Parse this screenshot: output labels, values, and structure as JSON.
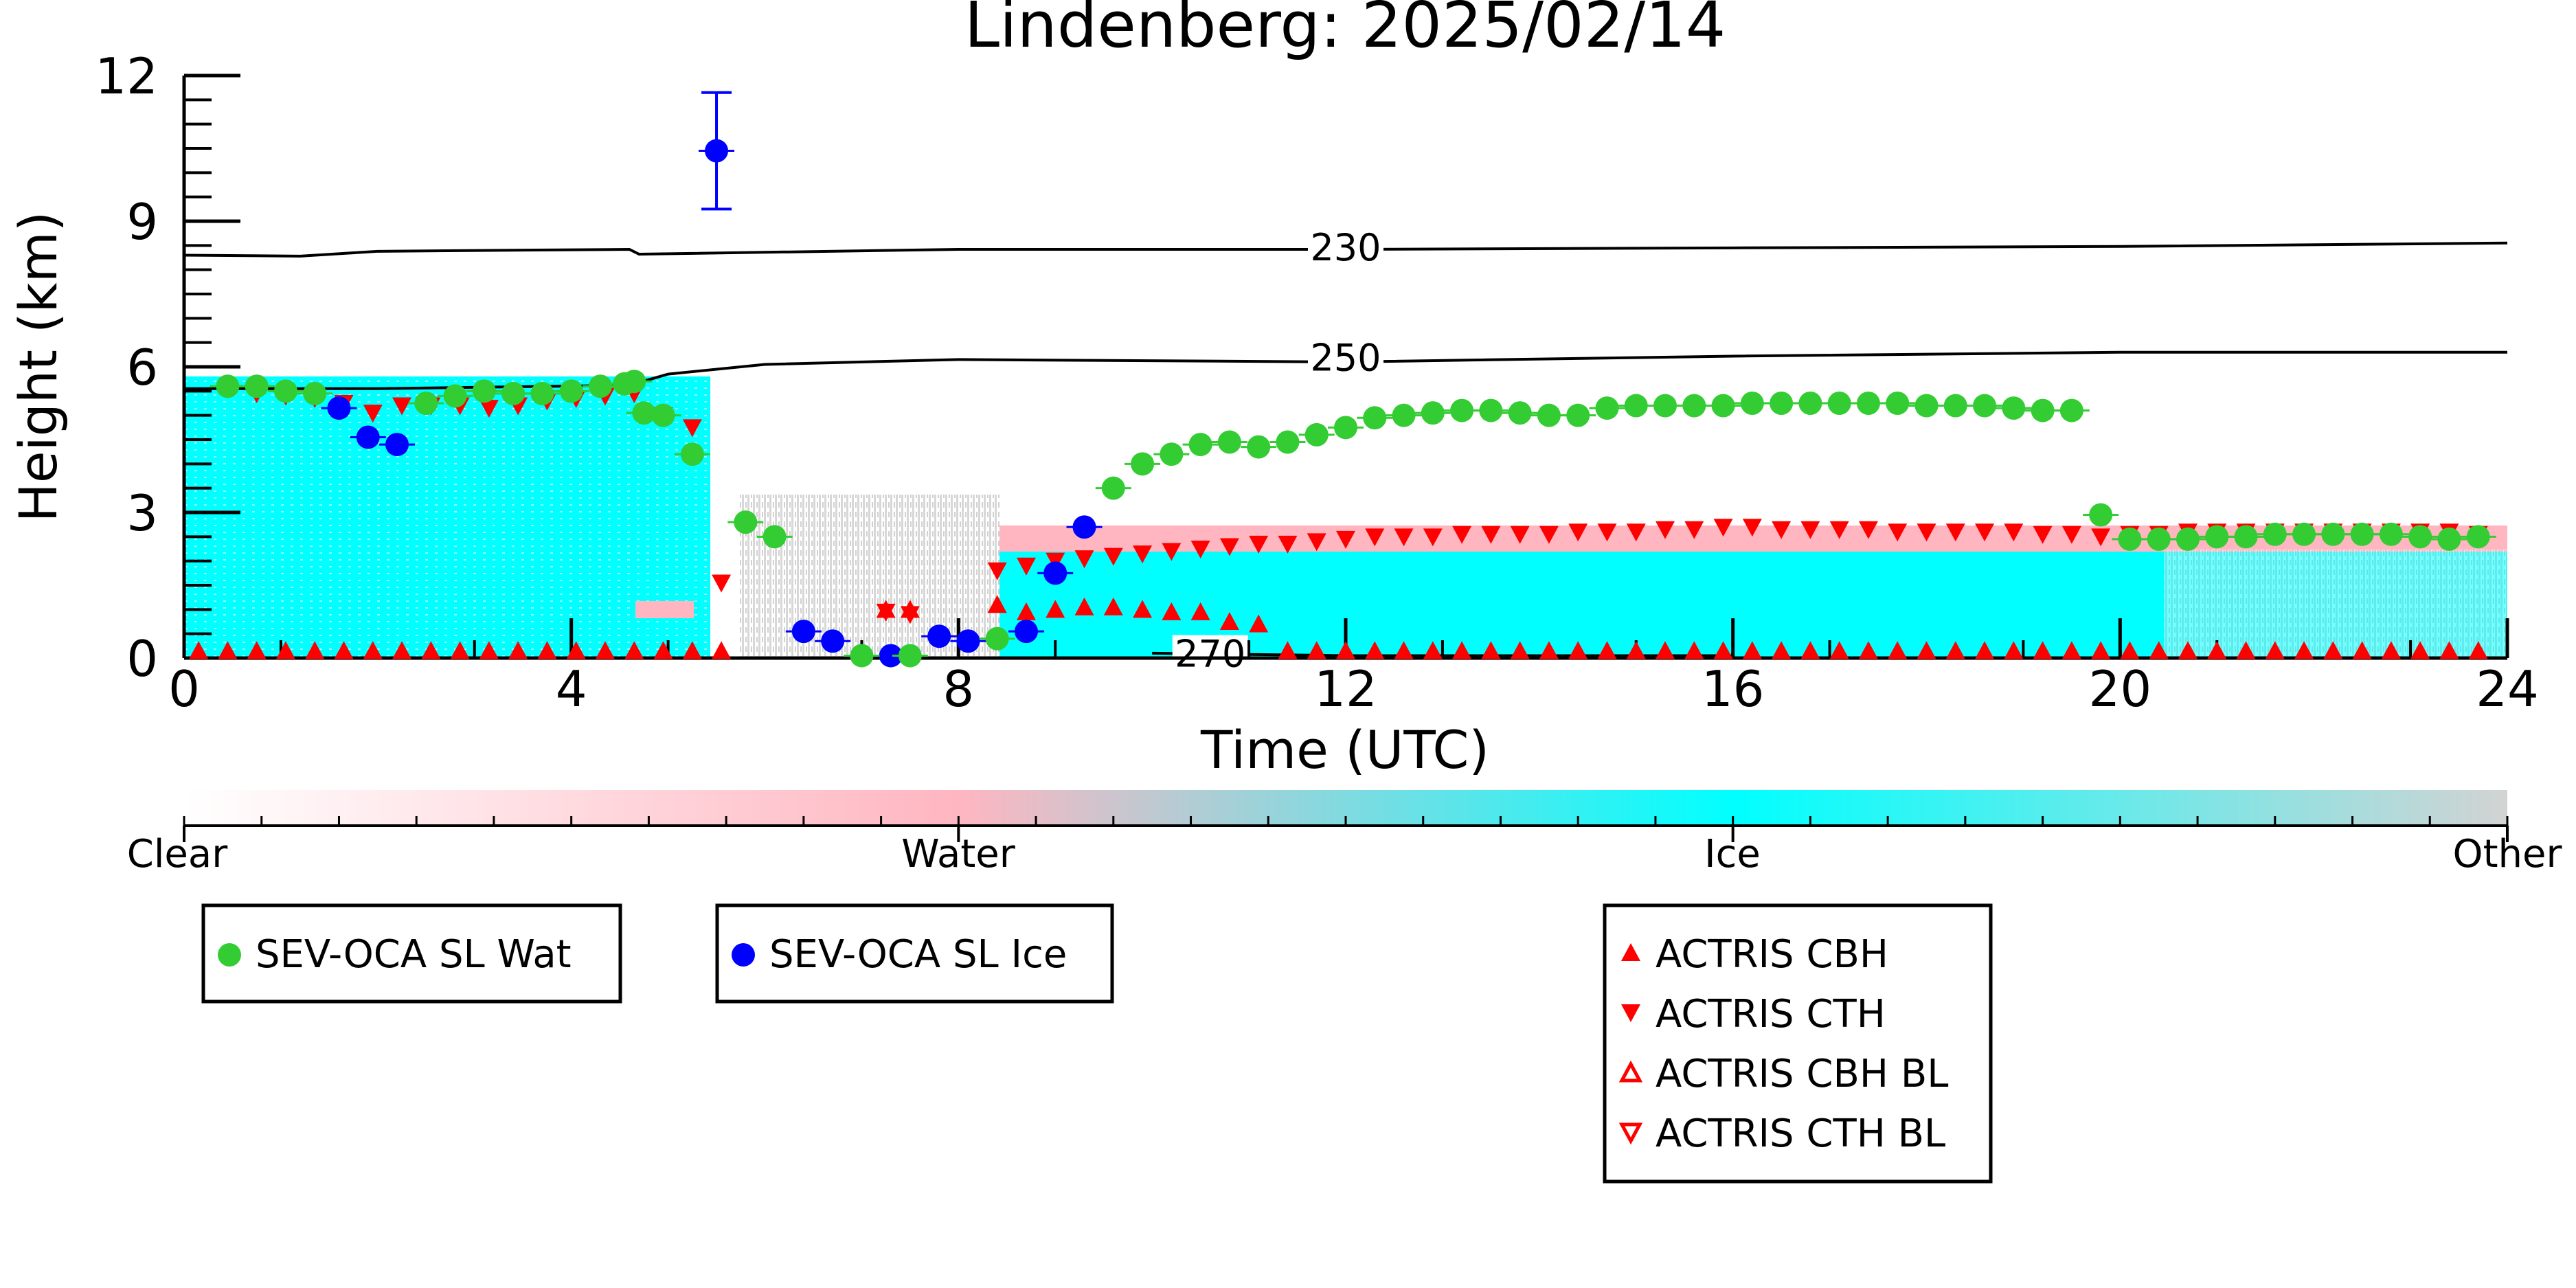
{
  "chart_data": {
    "type": "scatter",
    "title": "Lindenberg: 2025/02/14",
    "xlabel": "Time (UTC)",
    "ylabel": "Height (km)",
    "xlim": [
      0,
      24
    ],
    "ylim": [
      0,
      12
    ],
    "x_ticks": [
      0,
      4,
      8,
      12,
      16,
      20,
      24
    ],
    "y_ticks": [
      0,
      3,
      6,
      9,
      12
    ],
    "grid": false,
    "colorbar": {
      "labels": [
        "Clear",
        "Water",
        "Ice",
        "Other"
      ],
      "colors": [
        "#ffffff",
        "#ffb6c1",
        "#00ffff",
        "#d3d3d3"
      ]
    },
    "contours": [
      {
        "label": "230",
        "x": [
          0,
          1.2,
          2,
          4.6,
          4.7,
          8,
          12,
          16,
          20,
          24
        ],
        "y": [
          8.3,
          8.28,
          8.38,
          8.42,
          8.32,
          8.42,
          8.42,
          8.45,
          8.48,
          8.55
        ]
      },
      {
        "label": "250",
        "x": [
          0,
          2,
          4.6,
          5,
          6,
          8,
          12,
          16,
          20,
          24
        ],
        "y": [
          5.55,
          5.55,
          5.62,
          5.85,
          6.05,
          6.15,
          6.1,
          6.22,
          6.3,
          6.3
        ]
      },
      {
        "label": "270",
        "x": [
          10,
          12,
          16
        ],
        "y": [
          0.1,
          0.05,
          0.05
        ]
      }
    ],
    "series": [
      {
        "name": "SEV-OCA SL Wat",
        "color": "#33cc33",
        "marker": "circle",
        "x": [
          0.45,
          0.75,
          1.05,
          1.35,
          2.5,
          2.8,
          3.1,
          3.4,
          3.7,
          4.0,
          4.3,
          4.55,
          4.65,
          4.75,
          4.95,
          5.25,
          5.8,
          6.1,
          7.0,
          7.5,
          8.4,
          9.6,
          9.9,
          10.2,
          10.5,
          10.8,
          11.1,
          11.4,
          11.7,
          12.0,
          12.3,
          12.6,
          12.9,
          13.2,
          13.5,
          13.8,
          14.1,
          14.4,
          14.7,
          15.0,
          15.3,
          15.6,
          15.9,
          16.2,
          16.5,
          16.8,
          17.1,
          17.4,
          17.7,
          18.0,
          18.3,
          18.6,
          18.9,
          19.2,
          19.5,
          19.8,
          20.1,
          20.4,
          20.7,
          21.0,
          21.3,
          21.6,
          21.9,
          22.2,
          22.5,
          22.8,
          23.1,
          23.4,
          23.7
        ],
        "y": [
          5.6,
          5.6,
          5.5,
          5.45,
          5.25,
          5.4,
          5.5,
          5.45,
          5.45,
          5.5,
          5.6,
          5.65,
          5.7,
          5.05,
          5.0,
          4.2,
          2.8,
          2.5,
          0.05,
          0.05,
          0.4,
          3.5,
          4.0,
          4.2,
          4.4,
          4.45,
          4.35,
          4.45,
          4.6,
          4.75,
          4.95,
          5.0,
          5.05,
          5.1,
          5.1,
          5.05,
          5.0,
          5.0,
          5.15,
          5.2,
          5.2,
          5.2,
          5.2,
          5.25,
          5.25,
          5.25,
          5.25,
          5.25,
          5.25,
          5.2,
          5.2,
          5.2,
          5.15,
          5.1,
          5.1,
          2.95,
          2.45,
          2.45,
          2.45,
          2.5,
          2.5,
          2.55,
          2.55,
          2.55,
          2.55,
          2.55,
          2.5,
          2.45,
          2.5
        ]
      },
      {
        "name": "SEV-OCA SL Ice",
        "color": "#0000ff",
        "marker": "circle",
        "x": [
          1.6,
          1.9,
          2.2,
          5.5,
          6.4,
          6.7,
          7.3,
          7.8,
          8.1,
          8.7,
          9.0,
          9.3
        ],
        "y": [
          5.15,
          4.55,
          4.4,
          10.45,
          0.55,
          0.35,
          0.05,
          0.45,
          0.35,
          0.55,
          1.75,
          2.7
        ],
        "yerr": [
          0,
          0,
          0,
          1.2,
          0,
          0,
          0,
          0,
          0,
          0,
          0,
          0
        ]
      },
      {
        "name": "ACTRIS CBH",
        "color": "#ff0000",
        "marker": "triangle-up",
        "x": [
          0.15,
          0.45,
          0.75,
          1.05,
          1.35,
          1.65,
          1.95,
          2.25,
          2.55,
          2.85,
          3.15,
          3.45,
          3.75,
          4.05,
          4.35,
          4.65,
          4.95,
          5.25,
          5.55,
          7.25,
          7.5,
          8.4,
          8.7,
          9.0,
          9.3,
          9.6,
          9.9,
          10.2,
          10.5,
          10.8,
          11.1,
          11.4,
          11.7,
          12.0,
          12.3,
          12.6,
          12.9,
          13.2,
          13.5,
          13.8,
          14.1,
          14.4,
          14.7,
          15.0,
          15.3,
          15.6,
          15.9,
          16.2,
          16.5,
          16.8,
          17.1,
          17.4,
          17.7,
          18.0,
          18.3,
          18.6,
          18.9,
          19.2,
          19.5,
          19.8,
          20.1,
          20.4,
          20.7,
          21.0,
          21.3,
          21.6,
          21.9,
          22.2,
          22.5,
          22.8,
          23.1,
          23.4,
          23.7
        ],
        "y": [
          0.15,
          0.15,
          0.15,
          0.15,
          0.15,
          0.15,
          0.15,
          0.15,
          0.15,
          0.15,
          0.15,
          0.15,
          0.15,
          0.15,
          0.15,
          0.15,
          0.15,
          0.15,
          0.15,
          1.0,
          1.0,
          1.1,
          0.95,
          1.0,
          1.05,
          1.05,
          1.0,
          0.95,
          0.95,
          0.75,
          0.7,
          0.15,
          0.15,
          0.15,
          0.15,
          0.15,
          0.15,
          0.15,
          0.15,
          0.15,
          0.15,
          0.15,
          0.15,
          0.15,
          0.15,
          0.15,
          0.15,
          0.15,
          0.15,
          0.15,
          0.15,
          0.15,
          0.15,
          0.15,
          0.15,
          0.15,
          0.15,
          0.15,
          0.15,
          0.15,
          0.15,
          0.15,
          0.15,
          0.15,
          0.15,
          0.15,
          0.15,
          0.15,
          0.15,
          0.15,
          0.15,
          0.15,
          0.15
        ]
      },
      {
        "name": "ACTRIS CTH",
        "color": "#ff0000",
        "marker": "triangle-down",
        "x": [
          0.45,
          0.75,
          1.05,
          1.35,
          1.65,
          1.95,
          2.25,
          2.55,
          2.85,
          3.15,
          3.45,
          3.75,
          4.05,
          4.35,
          4.65,
          4.95,
          5.25,
          5.55,
          7.25,
          7.5,
          8.4,
          8.7,
          9.0,
          9.3,
          9.6,
          9.9,
          10.2,
          10.5,
          10.8,
          11.1,
          11.4,
          11.7,
          12.0,
          12.3,
          12.6,
          12.9,
          13.2,
          13.5,
          13.8,
          14.1,
          14.4,
          14.7,
          15.0,
          15.3,
          15.6,
          15.9,
          16.2,
          16.5,
          16.8,
          17.1,
          17.4,
          17.7,
          18.0,
          18.3,
          18.6,
          18.9,
          19.2,
          19.5,
          19.8,
          20.1,
          20.4,
          20.7,
          21.0,
          21.3,
          21.6,
          21.9,
          22.2,
          22.5,
          22.8,
          23.1,
          23.4,
          23.7
        ],
        "y": [
          5.55,
          5.45,
          5.4,
          5.35,
          5.25,
          5.05,
          5.2,
          5.2,
          5.2,
          5.15,
          5.2,
          5.3,
          5.35,
          5.4,
          5.45,
          5.0,
          4.75,
          1.55,
          0.95,
          0.9,
          1.8,
          1.9,
          2.0,
          2.05,
          2.1,
          2.15,
          2.2,
          2.25,
          2.3,
          2.35,
          2.35,
          2.4,
          2.45,
          2.5,
          2.5,
          2.5,
          2.55,
          2.55,
          2.55,
          2.55,
          2.6,
          2.6,
          2.6,
          2.65,
          2.65,
          2.7,
          2.7,
          2.65,
          2.65,
          2.65,
          2.65,
          2.6,
          2.6,
          2.6,
          2.6,
          2.6,
          2.55,
          2.55,
          2.5,
          2.55,
          2.55,
          2.6,
          2.6,
          2.6,
          2.6,
          2.6,
          2.6,
          2.6,
          2.6,
          2.6,
          2.6,
          2.55
        ]
      },
      {
        "name": "ACTRIS CBH BL",
        "color": "#ff0000",
        "marker": "triangle-up-open",
        "x": [],
        "y": []
      },
      {
        "name": "ACTRIS CTH BL",
        "color": "#ff0000",
        "marker": "triangle-down-open",
        "x": [],
        "y": []
      }
    ],
    "legend_groups": [
      [
        "SEV-OCA SL Wat"
      ],
      [
        "SEV-OCA SL Ice"
      ],
      [
        "ACTRIS CBH",
        "ACTRIS CTH",
        "ACTRIS CBH BL",
        "ACTRIS CTH BL"
      ]
    ]
  }
}
